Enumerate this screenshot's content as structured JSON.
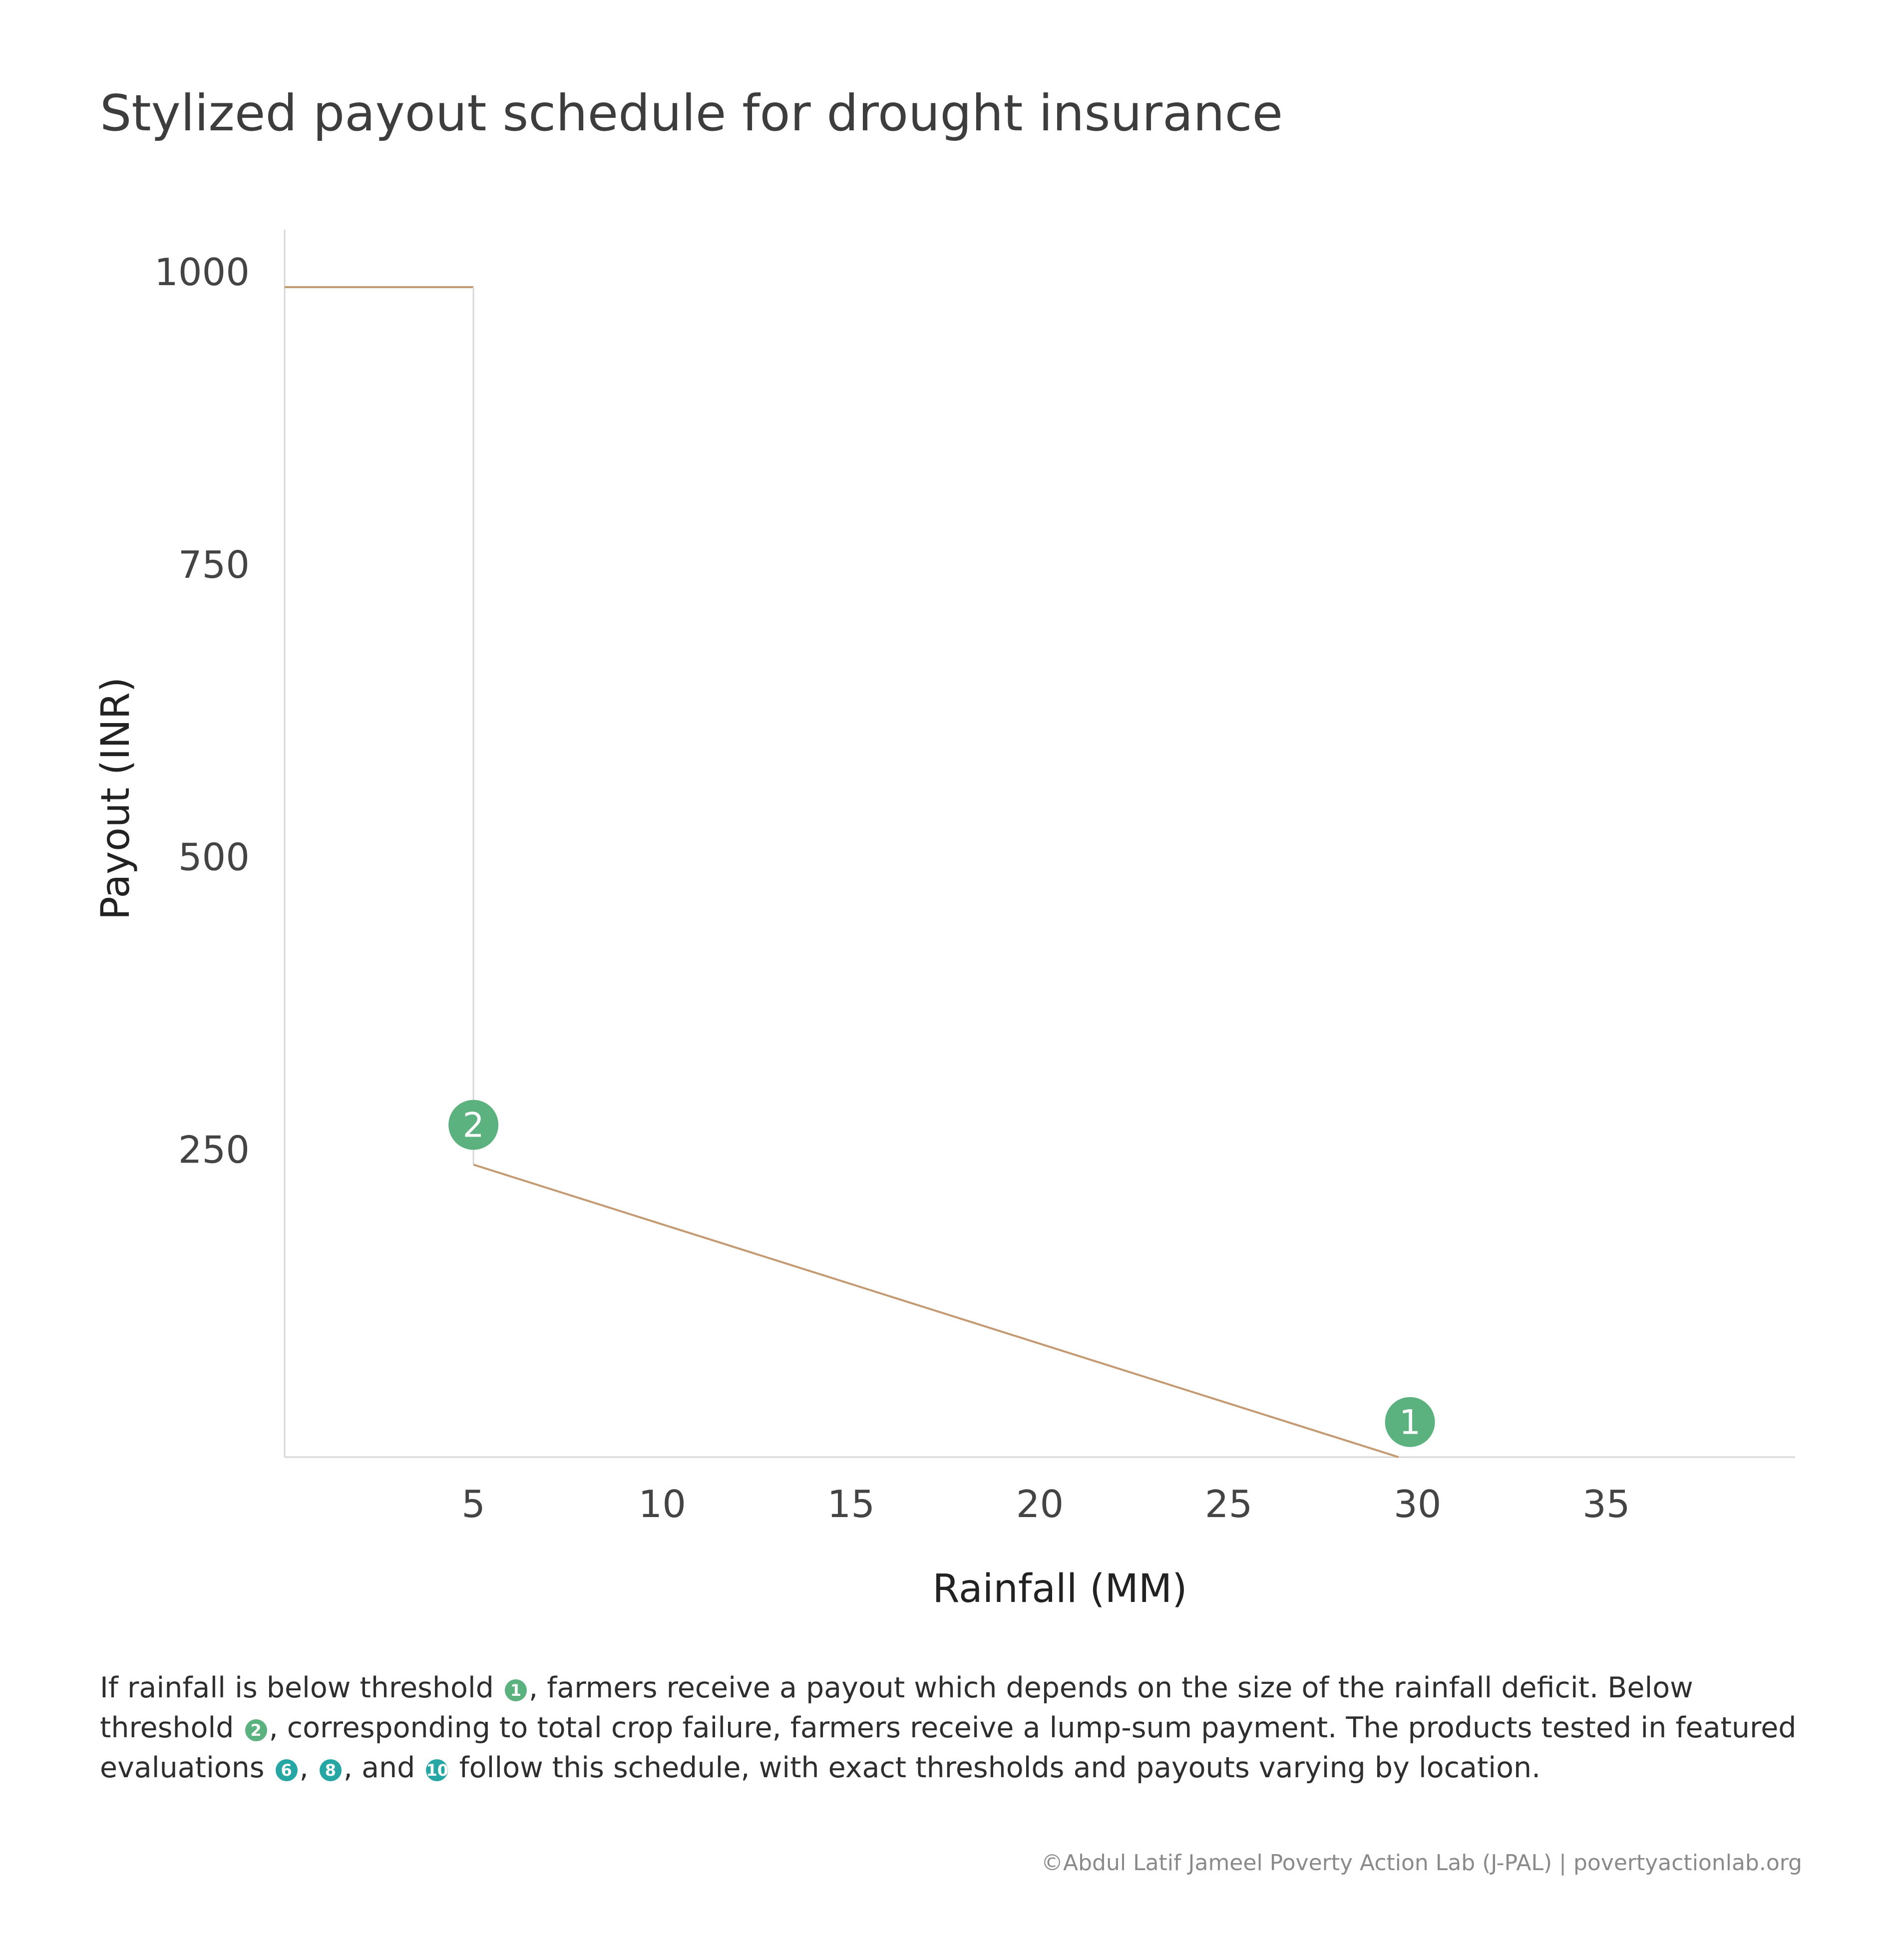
{
  "title": "Stylized payout schedule for drought insurance",
  "chart_data": {
    "type": "line",
    "xlabel": "Rainfall (MM)",
    "ylabel": "Payout (INR)",
    "xlim": [
      0,
      40
    ],
    "ylim": [
      0,
      1000
    ],
    "x_ticks": [
      5,
      10,
      15,
      20,
      25,
      30,
      35
    ],
    "y_ticks": [
      250,
      500,
      750,
      1000
    ],
    "grid": false,
    "legend": "none",
    "series": [
      {
        "color": "#c49a72",
        "points": [
          [
            0,
            1000
          ],
          [
            5,
            1000
          ],
          [
            5,
            250
          ],
          [
            29.5,
            0
          ]
        ]
      }
    ],
    "markers": [
      {
        "label": "1",
        "x": 29.8,
        "y": 30
      },
      {
        "label": "2",
        "x": 5,
        "y": 284
      }
    ],
    "marker_color": "#5bb27e",
    "axis_color": "#d6d6d6"
  },
  "caption": {
    "t1": "If rainfall is below threshold ",
    "b1": "1",
    "t2": ", farmers receive a payout which depends on the size of the rainfall deficit. Below threshold ",
    "b2": "2",
    "t3": ", corresponding to total crop failure, farmers receive a lump-sum payment. The products tested in featured evaluations ",
    "b3": "6",
    "t4": ", ",
    "b4": "8",
    "t5": ", and ",
    "b5": "10",
    "t6": " follow this schedule, with exact thresholds and payouts varying by location."
  },
  "footer": "©Abdul Latif Jameel Poverty Action Lab (J-PAL) | povertyactionlab.org"
}
